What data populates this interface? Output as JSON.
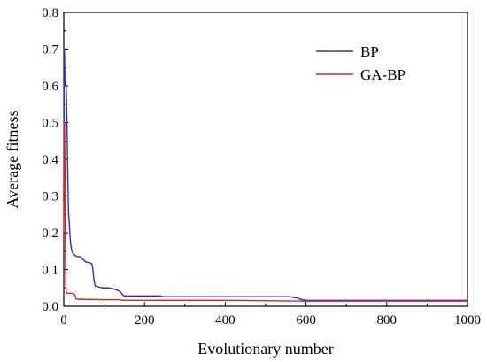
{
  "chart_data": {
    "type": "line",
    "xlabel": "Evolutionary number",
    "ylabel": "Average fitness",
    "xlim": [
      0,
      1000
    ],
    "ylim": [
      0,
      0.8
    ],
    "xticks": [
      0,
      200,
      400,
      600,
      800,
      1000
    ],
    "yticks": [
      0.0,
      0.1,
      0.2,
      0.3,
      0.4,
      0.5,
      0.6,
      0.7,
      0.8
    ],
    "xtick_labels": [
      "0",
      "200",
      "400",
      "600",
      "800",
      "1000"
    ],
    "ytick_labels": [
      "0.0",
      "0.1",
      "0.2",
      "0.3",
      "0.4",
      "0.5",
      "0.6",
      "0.7",
      "0.8"
    ],
    "legend_position": "top-right",
    "grid": false,
    "series": [
      {
        "name": "BP",
        "color": "#2b2bcc",
        "x": [
          0,
          1,
          2,
          3,
          4,
          5,
          6,
          7,
          8,
          9,
          10,
          11,
          12,
          14,
          15,
          17,
          20,
          22,
          25,
          27,
          29,
          32,
          35,
          40,
          45,
          50,
          55,
          60,
          65,
          70,
          72,
          75,
          78,
          85,
          95,
          110,
          120,
          130,
          140,
          145,
          150,
          240,
          245,
          400,
          560,
          570,
          580,
          585,
          600,
          1000
        ],
        "y": [
          0.28,
          0.7,
          0.68,
          0.6,
          0.62,
          0.6,
          0.6,
          0.55,
          0.5,
          0.42,
          0.35,
          0.3,
          0.25,
          0.22,
          0.2,
          0.17,
          0.15,
          0.145,
          0.14,
          0.14,
          0.138,
          0.135,
          0.135,
          0.135,
          0.13,
          0.125,
          0.12,
          0.12,
          0.118,
          0.115,
          0.1,
          0.07,
          0.055,
          0.053,
          0.05,
          0.05,
          0.048,
          0.045,
          0.04,
          0.032,
          0.028,
          0.028,
          0.026,
          0.026,
          0.026,
          0.024,
          0.022,
          0.019,
          0.016,
          0.016
        ]
      },
      {
        "name": "GA-BP",
        "color": "#e02020",
        "x": [
          0,
          1,
          2,
          3,
          4,
          5,
          6,
          8,
          10,
          15,
          20,
          25,
          28,
          30,
          35,
          40,
          100,
          140,
          145,
          400,
          600,
          1000
        ],
        "y": [
          0.2,
          0.5,
          0.5,
          0.35,
          0.15,
          0.06,
          0.04,
          0.035,
          0.035,
          0.035,
          0.035,
          0.034,
          0.03,
          0.02,
          0.019,
          0.019,
          0.018,
          0.018,
          0.016,
          0.016,
          0.014,
          0.014
        ]
      }
    ]
  }
}
